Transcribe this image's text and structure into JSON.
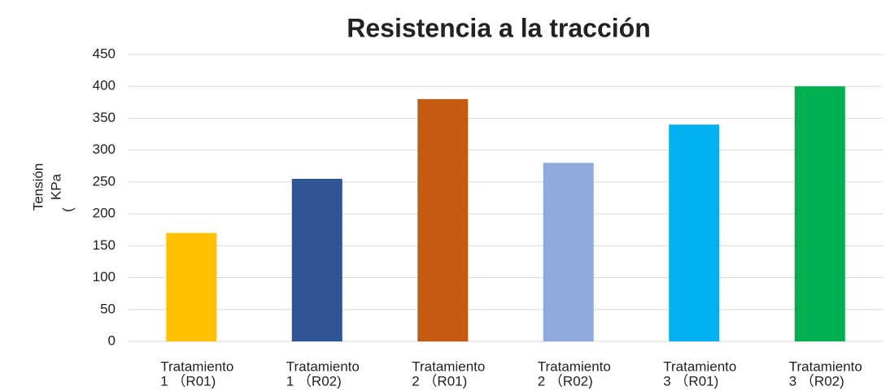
{
  "chart_data": {
    "type": "bar",
    "title": "Resistencia a la tracción",
    "ylabel": [
      "Tensión",
      "KPa",
      "("
    ],
    "categories": [
      [
        "Tratamiento",
        "1 （R01)"
      ],
      [
        "Tratamiento",
        "1 （R02)"
      ],
      [
        "Tratamiento",
        "2 （R01)"
      ],
      [
        "Tratamiento",
        "2 （R02)"
      ],
      [
        "Tratamiento",
        "3 （R01)"
      ],
      [
        "Tratamiento",
        "3 （R02)"
      ]
    ],
    "values": [
      170,
      255,
      380,
      280,
      340,
      400
    ],
    "colors": [
      "#ffc000",
      "#2f5597",
      "#c55a11",
      "#8faadc",
      "#00b0f0",
      "#00b050"
    ],
    "ylim": [
      0,
      450
    ],
    "yticks": [
      0,
      50,
      100,
      150,
      200,
      250,
      300,
      350,
      400,
      450
    ],
    "grid": true
  }
}
